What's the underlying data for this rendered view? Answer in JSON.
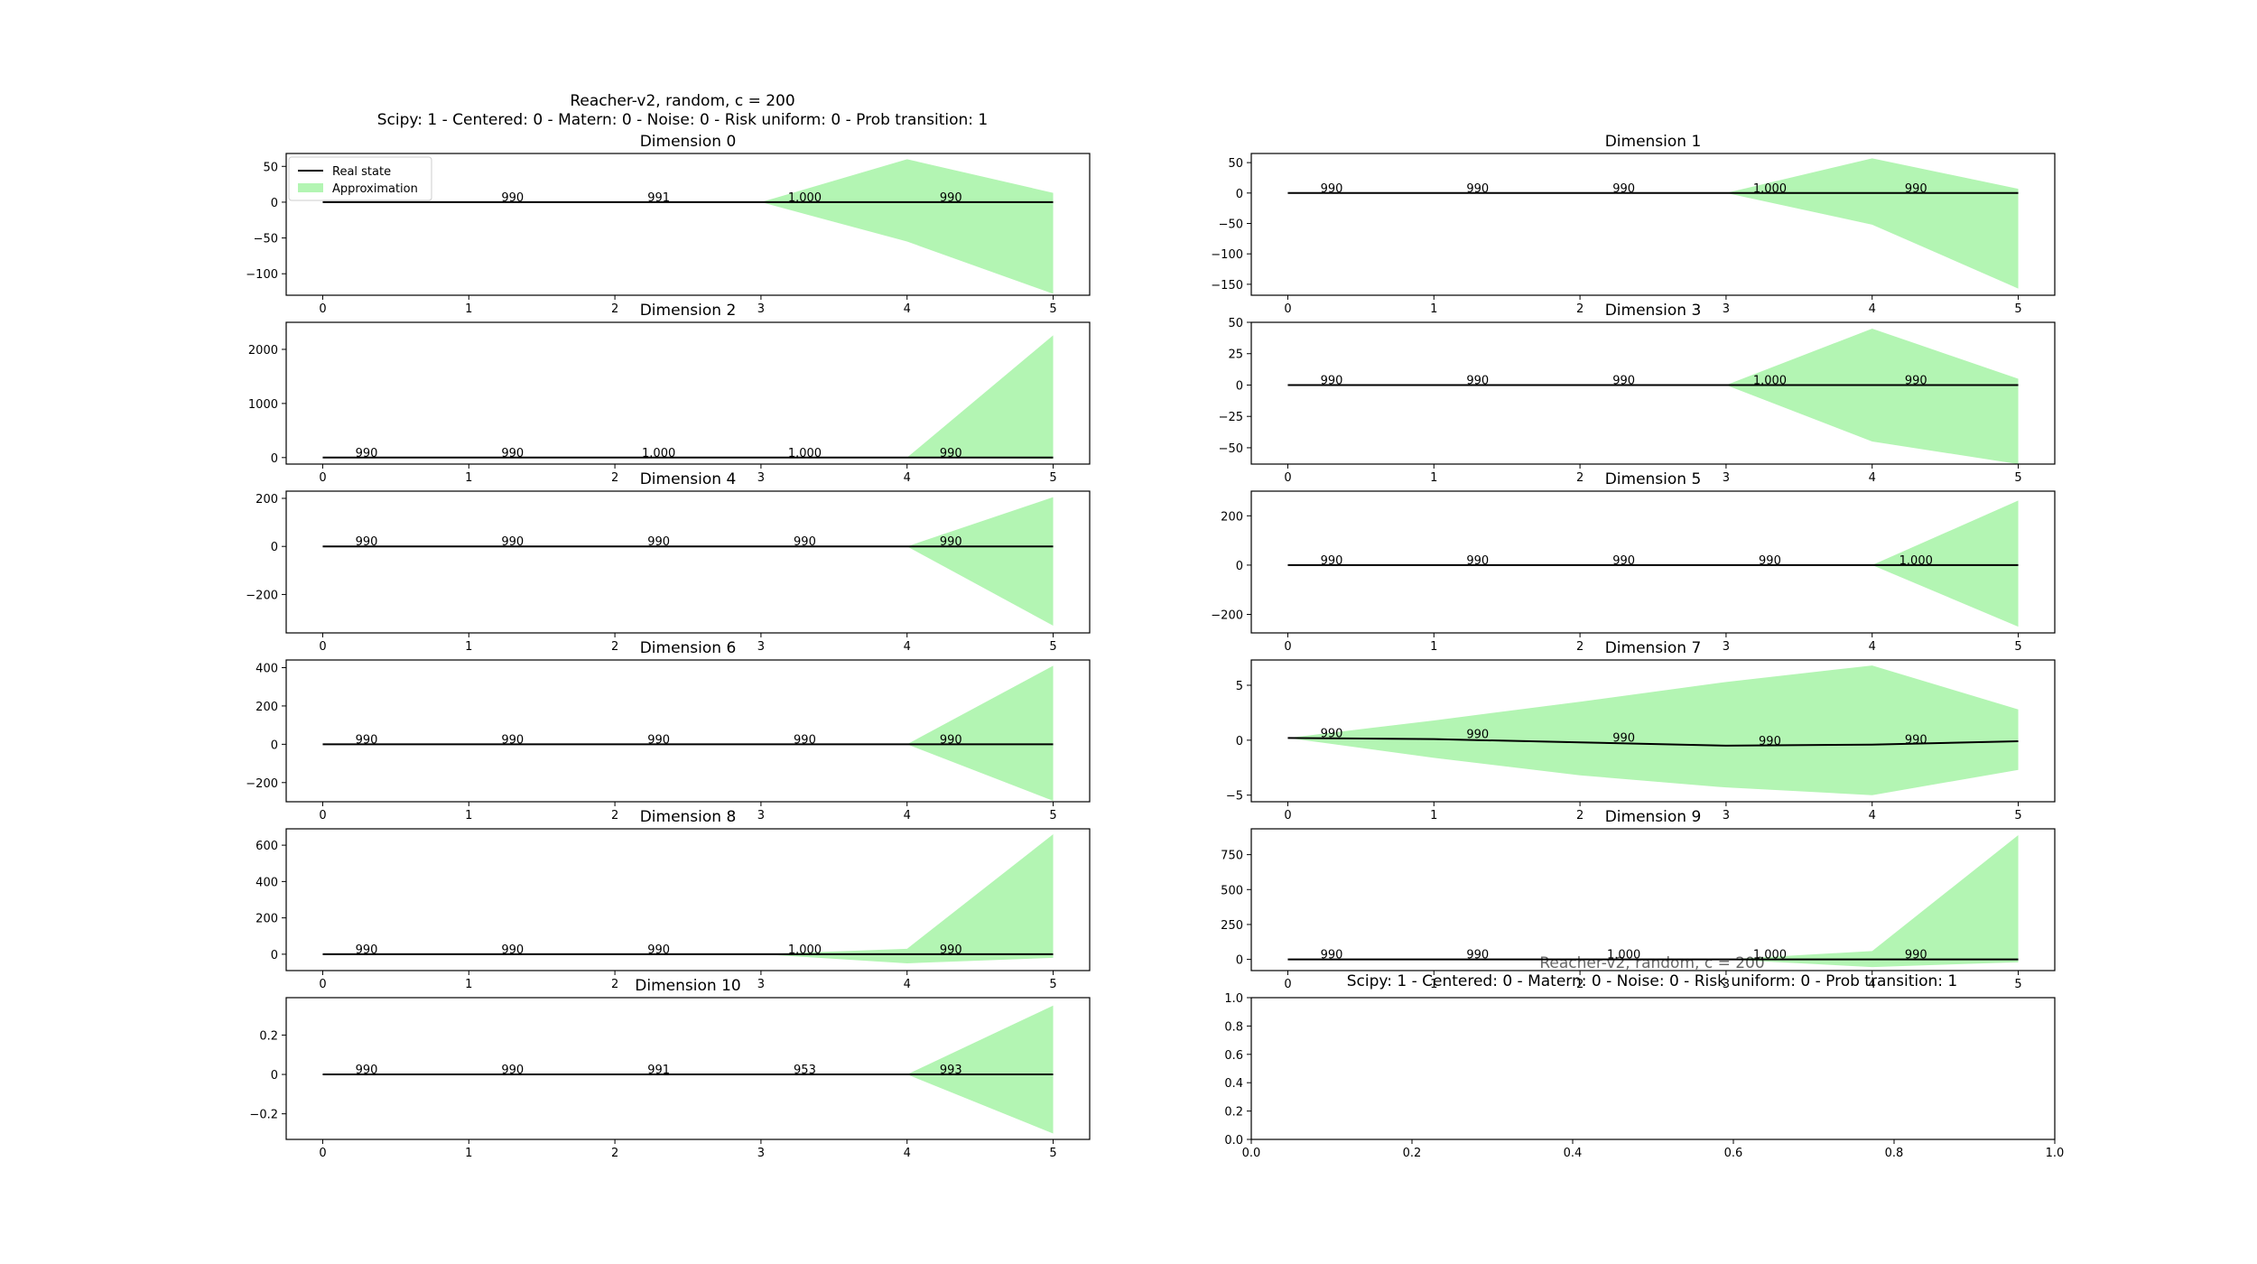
{
  "figure": {
    "suptitle_line1": "Reacher-v2, random, c = 200",
    "suptitle_line2": "Scipy: 1 - Centered: 0 - Matern: 0 - Noise: 0 - Risk uniform: 0 - Prob transition: 1",
    "overlap_title_line1": "Reacher-v2, random, c = 200",
    "overlap_title_line2": "Scipy: 1 - Centered: 0 - Matern: 0 - Noise: 0 - Risk uniform: 0 - Prob transition: 1"
  },
  "legend": {
    "real_state": "Real state",
    "approximation": "Approximation"
  },
  "colors": {
    "real_state": "#000000",
    "approximation": "#b3f5b3"
  },
  "chart_data": [
    {
      "type": "area",
      "title": "Dimension 0",
      "x": [
        0,
        1,
        2,
        3,
        4,
        5
      ],
      "yticks": [
        50,
        0,
        -50,
        -100
      ],
      "ylim": [
        -130,
        68
      ],
      "real_state": [
        0,
        0,
        0,
        0,
        0,
        0
      ],
      "approx_upper": [
        0,
        0,
        0,
        0,
        60,
        13
      ],
      "approx_lower": [
        0,
        0,
        0,
        0,
        -55,
        -128
      ],
      "annotations": [
        "990",
        "991",
        "1.000",
        "990"
      ],
      "annotation_x": [
        1,
        2,
        3,
        4
      ],
      "legend": "upper left"
    },
    {
      "type": "area",
      "title": "Dimension 1",
      "x": [
        0,
        1,
        2,
        3,
        4,
        5
      ],
      "yticks": [
        50,
        0,
        -50,
        -100,
        -150
      ],
      "ylim": [
        -168,
        65
      ],
      "real_state": [
        0,
        0,
        0,
        0,
        0,
        0
      ],
      "approx_upper": [
        0,
        0,
        0,
        0,
        57,
        7
      ],
      "approx_lower": [
        0,
        0,
        0,
        0,
        -52,
        -157
      ],
      "annotations": [
        "990",
        "990",
        "990",
        "1.000",
        "990"
      ],
      "annotation_x": [
        0,
        1,
        2,
        3,
        4
      ]
    },
    {
      "type": "area",
      "title": "Dimension 2",
      "x": [
        0,
        1,
        2,
        3,
        4,
        5
      ],
      "yticks": [
        2000,
        1000,
        0
      ],
      "ylim": [
        -120,
        2500
      ],
      "real_state": [
        0,
        0,
        0,
        0,
        0,
        0
      ],
      "approx_upper": [
        0,
        0,
        0,
        0,
        0,
        2260
      ],
      "approx_lower": [
        0,
        0,
        0,
        0,
        0,
        -25
      ],
      "annotations": [
        "990",
        "990",
        "1.000",
        "1.000",
        "990"
      ],
      "annotation_x": [
        0,
        1,
        2,
        3,
        4
      ]
    },
    {
      "type": "area",
      "title": "Dimension 3",
      "x": [
        0,
        1,
        2,
        3,
        4,
        5
      ],
      "yticks": [
        50,
        25,
        0,
        -25,
        -50
      ],
      "ylim": [
        -63,
        50
      ],
      "real_state": [
        0,
        0,
        0,
        0,
        0,
        0
      ],
      "approx_upper": [
        0,
        0,
        0,
        0,
        45,
        5
      ],
      "approx_lower": [
        0,
        0,
        0,
        0,
        -45,
        -63
      ],
      "annotations": [
        "990",
        "990",
        "990",
        "1.000",
        "990"
      ],
      "annotation_x": [
        0,
        1,
        2,
        3,
        4
      ]
    },
    {
      "type": "area",
      "title": "Dimension 4",
      "x": [
        0,
        1,
        2,
        3,
        4,
        5
      ],
      "yticks": [
        200,
        0,
        -200
      ],
      "ylim": [
        -360,
        230
      ],
      "real_state": [
        0,
        0,
        0,
        0,
        0,
        0
      ],
      "approx_upper": [
        0,
        0,
        0,
        0,
        0,
        205
      ],
      "approx_lower": [
        0,
        0,
        0,
        0,
        0,
        -330
      ],
      "annotations": [
        "990",
        "990",
        "990",
        "990",
        "990"
      ],
      "annotation_x": [
        0,
        1,
        2,
        3,
        4
      ]
    },
    {
      "type": "area",
      "title": "Dimension 5",
      "x": [
        0,
        1,
        2,
        3,
        4,
        5
      ],
      "yticks": [
        200,
        0,
        -200
      ],
      "ylim": [
        -275,
        300
      ],
      "real_state": [
        0,
        0,
        0,
        0,
        0,
        0
      ],
      "approx_upper": [
        0,
        0,
        0,
        0,
        0,
        262
      ],
      "approx_lower": [
        0,
        0,
        0,
        0,
        0,
        -250
      ],
      "annotations": [
        "990",
        "990",
        "990",
        "990",
        "1.000"
      ],
      "annotation_x": [
        0,
        1,
        2,
        3,
        4
      ]
    },
    {
      "type": "area",
      "title": "Dimension 6",
      "x": [
        0,
        1,
        2,
        3,
        4,
        5
      ],
      "yticks": [
        400,
        200,
        0,
        -200
      ],
      "ylim": [
        -300,
        440
      ],
      "real_state": [
        0,
        0,
        0,
        0,
        0,
        0
      ],
      "approx_upper": [
        0,
        0,
        0,
        0,
        0,
        410
      ],
      "approx_lower": [
        0,
        0,
        0,
        0,
        0,
        -295
      ],
      "annotations": [
        "990",
        "990",
        "990",
        "990",
        "990"
      ],
      "annotation_x": [
        0,
        1,
        2,
        3,
        4
      ]
    },
    {
      "type": "area",
      "title": "Dimension 7",
      "x": [
        0,
        1,
        2,
        3,
        4,
        5
      ],
      "yticks": [
        5,
        0,
        -5
      ],
      "ylim": [
        -5.6,
        7.3
      ],
      "real_state": [
        0.2,
        0.1,
        -0.2,
        -0.5,
        -0.4,
        -0.1
      ],
      "approx_upper": [
        0.2,
        1.8,
        3.5,
        5.3,
        6.8,
        2.8
      ],
      "approx_lower": [
        0.2,
        -1.6,
        -3.2,
        -4.3,
        -5.0,
        -2.7
      ],
      "annotations": [
        "990",
        "990",
        "990",
        "990",
        "990"
      ],
      "annotation_x": [
        0,
        1,
        2,
        3,
        4
      ]
    },
    {
      "type": "area",
      "title": "Dimension 8",
      "x": [
        0,
        1,
        2,
        3,
        4,
        5
      ],
      "yticks": [
        600,
        400,
        200,
        0
      ],
      "ylim": [
        -90,
        690
      ],
      "real_state": [
        0,
        0,
        0,
        0,
        0,
        0
      ],
      "approx_upper": [
        0,
        0,
        0,
        0,
        30,
        660
      ],
      "approx_lower": [
        0,
        0,
        0,
        0,
        -50,
        -20
      ],
      "annotations": [
        "990",
        "990",
        "990",
        "1.000",
        "990"
      ],
      "annotation_x": [
        0,
        1,
        2,
        3,
        4
      ]
    },
    {
      "type": "area",
      "title": "Dimension 9",
      "x": [
        0,
        1,
        2,
        3,
        4,
        5
      ],
      "yticks": [
        750,
        500,
        250,
        0
      ],
      "ylim": [
        -80,
        935
      ],
      "real_state": [
        0,
        0,
        0,
        0,
        0,
        0
      ],
      "approx_upper": [
        0,
        0,
        0,
        0,
        60,
        890
      ],
      "approx_lower": [
        0,
        0,
        0,
        0,
        -55,
        -20
      ],
      "annotations": [
        "990",
        "990",
        "1.000",
        "1.000",
        "990"
      ],
      "annotation_x": [
        0,
        1,
        2,
        3,
        4
      ]
    },
    {
      "type": "area",
      "title": "Dimension 10",
      "x": [
        0,
        1,
        2,
        3,
        4,
        5
      ],
      "yticks": [
        0.2,
        0.0,
        -0.2
      ],
      "ylim": [
        -0.33,
        0.39
      ],
      "real_state": [
        0,
        0,
        0,
        0,
        0,
        0
      ],
      "approx_upper": [
        0,
        0,
        0,
        0,
        0,
        0.35
      ],
      "approx_lower": [
        0,
        0,
        0,
        0,
        0,
        -0.3
      ],
      "annotations": [
        "990",
        "990",
        "991",
        "953",
        "993"
      ],
      "annotation_x": [
        0,
        1,
        2,
        3,
        4
      ]
    },
    {
      "type": "line",
      "title": "",
      "x": [],
      "series": [],
      "xlim": [
        0,
        1
      ],
      "ylim": [
        0,
        1
      ],
      "xticks": [
        0.0,
        0.2,
        0.4,
        0.6,
        0.8,
        1.0
      ],
      "yticks": [
        0.0,
        0.2,
        0.4,
        0.6,
        0.8,
        1.0
      ]
    }
  ]
}
